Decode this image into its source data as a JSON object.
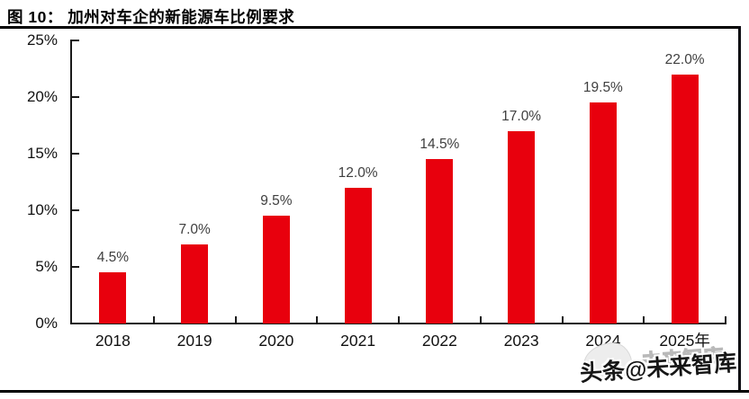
{
  "figure": {
    "title": "图 10： 加州对车企的新能源车比例要求"
  },
  "chart_data": {
    "type": "bar",
    "title": "加州对车企的新能源车比例要求",
    "categories": [
      "2018",
      "2019",
      "2020",
      "2021",
      "2022",
      "2023",
      "2024",
      "2025年"
    ],
    "values": [
      4.5,
      7.0,
      9.5,
      12.0,
      14.5,
      17.0,
      19.5,
      22.0
    ],
    "data_labels": [
      "4.5%",
      "7.0%",
      "9.5%",
      "12.0%",
      "14.5%",
      "17.0%",
      "19.5%",
      "22.0%"
    ],
    "xlabel": "",
    "ylabel": "",
    "ylim": [
      0,
      25
    ],
    "ytick_step": 5,
    "ytick_labels": [
      "0%",
      "5%",
      "10%",
      "15%",
      "20%",
      "25%"
    ],
    "grid": false,
    "legend": "none",
    "bar_color": "#e8000d",
    "data_label_color": "#3f3f3f",
    "axis_color": "#1a1a1a"
  },
  "watermark": {
    "dark_text": "头条@未来智库",
    "ghost_text": "未来智库"
  }
}
